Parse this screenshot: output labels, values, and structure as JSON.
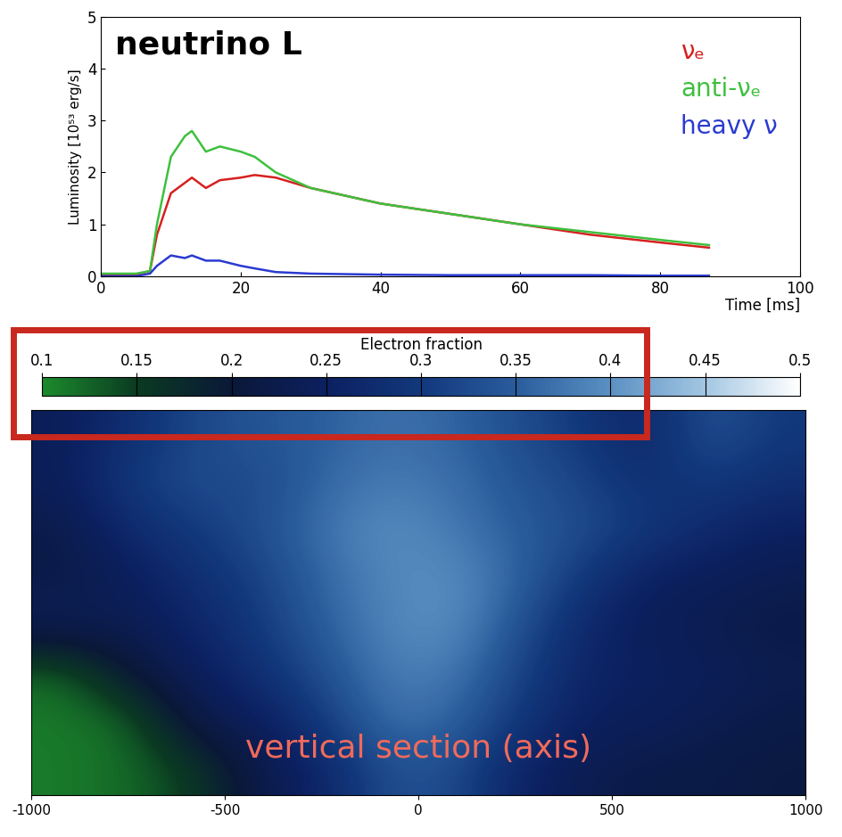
{
  "chart_data": [
    {
      "type": "line",
      "title": "neutrino L",
      "x_label": "Time [ms]",
      "y_label": "Luminosity [10⁵³ erg/s]",
      "xlim": [
        0,
        100
      ],
      "xticks": [
        0,
        20,
        40,
        60,
        80,
        100
      ],
      "ylim": [
        0,
        5
      ],
      "yticks": [
        0,
        1,
        2,
        3,
        4,
        5
      ],
      "legend": "upper right",
      "x": [
        0,
        5,
        7,
        8,
        10,
        12,
        13,
        15,
        17,
        20,
        22,
        25,
        30,
        40,
        50,
        60,
        70,
        80,
        87
      ],
      "series": [
        {
          "name": "νₑ",
          "color": "#d62020",
          "values": [
            0.03,
            0.03,
            0.1,
            0.8,
            1.6,
            1.8,
            1.9,
            1.7,
            1.85,
            1.9,
            1.95,
            1.9,
            1.7,
            1.4,
            1.2,
            1.0,
            0.8,
            0.65,
            0.55
          ]
        },
        {
          "name": "anti-νₑ",
          "color": "#3ec03e",
          "values": [
            0.05,
            0.05,
            0.1,
            1.0,
            2.3,
            2.7,
            2.8,
            2.4,
            2.5,
            2.4,
            2.3,
            2.0,
            1.7,
            1.4,
            1.2,
            1.0,
            0.85,
            0.7,
            0.6
          ]
        },
        {
          "name": "heavy ν",
          "color": "#2a3ad0",
          "values": [
            0.0,
            0.0,
            0.05,
            0.2,
            0.4,
            0.35,
            0.4,
            0.3,
            0.3,
            0.2,
            0.15,
            0.08,
            0.05,
            0.03,
            0.02,
            0.02,
            0.02,
            0.01,
            0.01
          ]
        }
      ]
    },
    {
      "type": "heatmap",
      "annotation": "vertical section (axis)",
      "xlim": [
        -1000,
        1000
      ],
      "xticks": [
        -1000,
        -500,
        0,
        500,
        1000
      ],
      "ylim": [
        0,
        1000
      ],
      "yticks": [],
      "tick_labels": "x",
      "colorbar_label": "Electron fraction",
      "colorbar_range": [
        0.1,
        0.5
      ],
      "colorbar_ticks": [
        0.1,
        0.15,
        0.2,
        0.25,
        0.3,
        0.35,
        0.4,
        0.45,
        0.5
      ],
      "cells": [
        [
          0.24,
          0.28,
          0.32,
          0.34,
          0.35,
          0.37,
          0.36,
          0.33,
          0.3,
          0.26,
          0.34,
          0.3
        ],
        [
          0.24,
          0.3,
          0.33,
          0.32,
          0.36,
          0.38,
          0.37,
          0.34,
          0.32,
          0.28,
          0.3,
          0.28
        ],
        [
          0.22,
          0.27,
          0.3,
          0.33,
          0.37,
          0.4,
          0.38,
          0.35,
          0.33,
          0.3,
          0.27,
          0.25
        ],
        [
          0.22,
          0.24,
          0.28,
          0.31,
          0.36,
          0.39,
          0.4,
          0.36,
          0.3,
          0.25,
          0.24,
          0.23
        ],
        [
          0.24,
          0.23,
          0.26,
          0.3,
          0.35,
          0.39,
          0.4,
          0.34,
          0.27,
          0.24,
          0.23,
          0.22
        ],
        [
          0.12,
          0.2,
          0.24,
          0.28,
          0.33,
          0.38,
          0.38,
          0.32,
          0.26,
          0.25,
          0.24,
          0.23
        ],
        [
          0.11,
          0.12,
          0.22,
          0.24,
          0.3,
          0.37,
          0.36,
          0.3,
          0.25,
          0.24,
          0.23,
          0.22
        ],
        [
          0.11,
          0.12,
          0.15,
          0.22,
          0.26,
          0.33,
          0.33,
          0.26,
          0.23,
          0.22,
          0.22,
          0.21
        ]
      ]
    }
  ]
}
